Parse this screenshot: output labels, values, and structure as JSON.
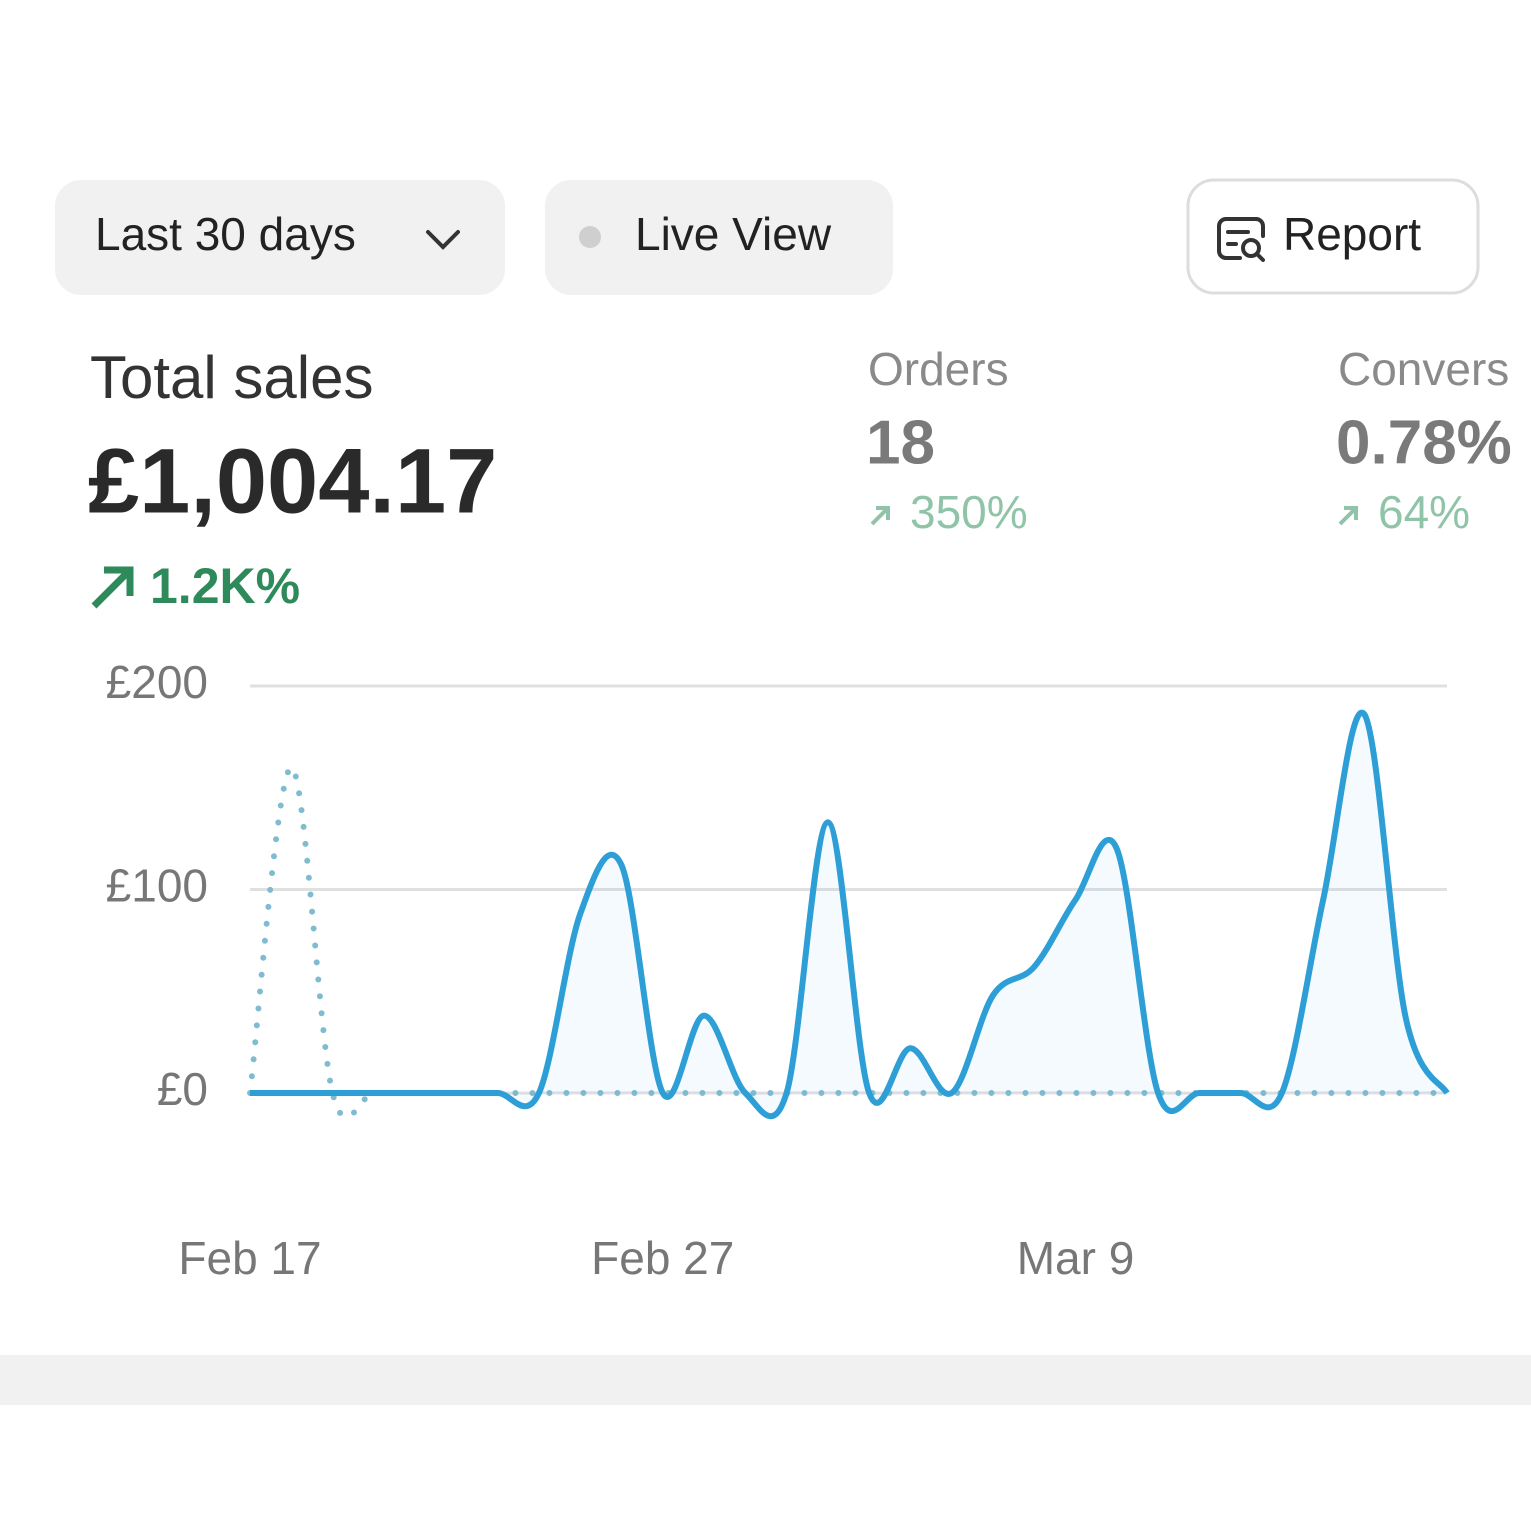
{
  "toolbar": {
    "date_range": "Last 30 days",
    "live_view": "Live View",
    "report": "Report"
  },
  "metrics": {
    "total_sales": {
      "label": "Total sales",
      "value": "£1,004.17",
      "change": "1.2K%"
    },
    "orders": {
      "label": "Orders",
      "value": 18,
      "change": "350%"
    },
    "conversion": {
      "label": "Convers",
      "value": "0.78%",
      "change": "64%"
    }
  },
  "chart_data": {
    "type": "line",
    "categories": [
      "Feb 17",
      null,
      null,
      null,
      null,
      null,
      null,
      null,
      null,
      null,
      "Feb 27",
      null,
      null,
      null,
      null,
      null,
      null,
      null,
      null,
      null,
      "Mar 9",
      null,
      null,
      null,
      null,
      null,
      null,
      null,
      null,
      null
    ],
    "series": [
      {
        "color": "#2d9fd6",
        "style": "solid",
        "values": [
          0,
          0,
          0,
          0,
          0,
          0,
          0,
          0,
          88,
          112,
          0,
          38,
          0,
          0,
          133,
          0,
          22,
          0,
          48,
          62,
          95,
          120,
          0,
          0,
          0,
          0,
          95,
          186,
          37,
          0
        ]
      },
      {
        "color": "#7fbcd0",
        "style": "dotted",
        "values": [
          0,
          160,
          0,
          0,
          0,
          0,
          0,
          0,
          0,
          0,
          0,
          0,
          0,
          0,
          0,
          0,
          0,
          0,
          0,
          0,
          0,
          0,
          0,
          0,
          0,
          0,
          0,
          0,
          0,
          0
        ]
      }
    ],
    "ylim": [
      0,
      200
    ],
    "yticks": [
      {
        "value": 0,
        "label": "£0"
      },
      {
        "value": 100,
        "label": "£100"
      },
      {
        "value": 200,
        "label": "£200"
      }
    ],
    "grid": true
  }
}
